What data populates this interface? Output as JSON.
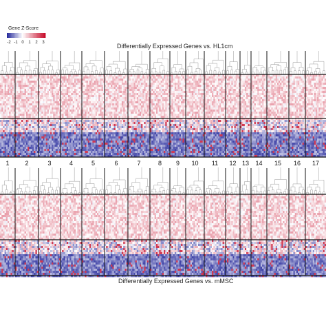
{
  "legend": {
    "title": "Gene Z-Score",
    "ticks": [
      "-2",
      "-1",
      "0",
      "1",
      "2",
      "3"
    ],
    "colors": [
      "#2b2f9e",
      "#ffffff",
      "#c8102e"
    ]
  },
  "panels": {
    "top_title": "Differentially Expressed Genes vs. HL1cm",
    "bottom_title": "Differentially Expressed Genes vs. mMSC"
  },
  "chart_data": {
    "type": "heatmap",
    "clusters": [
      "1",
      "2",
      "3",
      "4",
      "5",
      "6",
      "7",
      "8",
      "9",
      "10",
      "11",
      "12",
      "13",
      "14",
      "15",
      "16",
      "17"
    ],
    "color_scale": {
      "min": -2,
      "max": 3,
      "low": "#2b2f9e",
      "mid": "#ffffff",
      "high": "#c8102e"
    },
    "legend_label": "Gene Z-Score",
    "titles": [
      "Differentially Expressed Genes vs. HL1cm",
      "Differentially Expressed Genes vs. mMSC"
    ]
  }
}
